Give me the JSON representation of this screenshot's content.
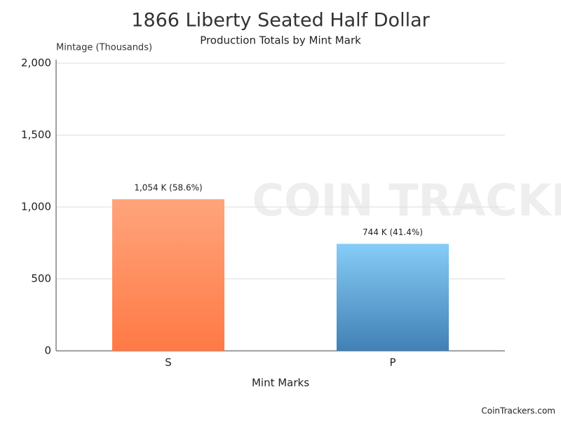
{
  "chart_data": {
    "type": "bar",
    "title": "1866 Liberty Seated Half Dollar",
    "subtitle": "Production Totals by Mint Mark",
    "y_axis_label": "Mintage (Thousands)",
    "x_axis_label": "Mint Marks",
    "categories": [
      "S",
      "P"
    ],
    "values": [
      1054,
      744
    ],
    "value_labels": [
      "1,054 K (58.6%)",
      "744 K (41.4%)"
    ],
    "colors": [
      [
        "#ffa47c",
        "#ff7a45"
      ],
      [
        "#86cdf7",
        "#4180b5"
      ]
    ],
    "ylim": [
      0,
      2000
    ],
    "yticks": [
      0,
      500,
      {
        "value": 1000,
        "label": "1,000"
      },
      {
        "value": 1500,
        "label": "1,500"
      },
      {
        "value": 2000,
        "label": "2,000"
      }
    ],
    "grid": true,
    "watermark": "COIN TRACKERS",
    "credit": "CoinTrackers.com"
  }
}
